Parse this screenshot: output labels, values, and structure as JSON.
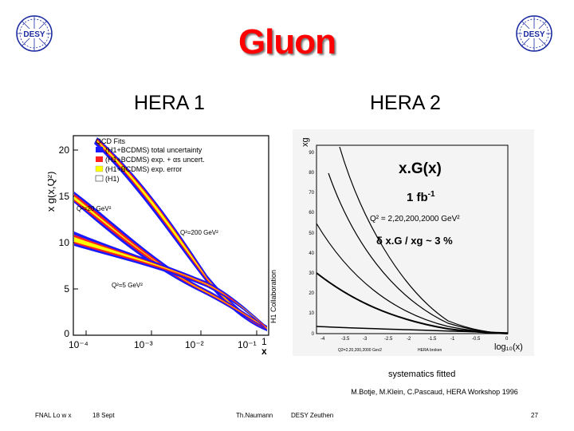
{
  "title": "Gluon",
  "logo_text": "DESY",
  "hera1_label": "HERA 1",
  "hera2_label": "HERA 2",
  "left_plot": {
    "y_axis_label": "x g(x,Q²)",
    "x_axis_label": "x",
    "y_ticks": [
      "20",
      "15",
      "10",
      "5",
      "0"
    ],
    "x_ticks": [
      "10⁻⁴",
      "10⁻³",
      "10⁻²",
      "10⁻¹",
      "1"
    ],
    "legend_title": "QCD Fits",
    "legend": [
      {
        "label": "(H1+BCDMS) total uncertainty",
        "color": "#1a1aff"
      },
      {
        "label": "(H1+BCDMS) exp. + αs uncert.",
        "color": "#ff2020"
      },
      {
        "label": "(H1+BCDMS) exp. error",
        "color": "#ffff00"
      },
      {
        "label": "(H1)",
        "color": "#ffffff"
      }
    ],
    "curve_labels": [
      "Q²=20 GeV²",
      "Q²=200 GeV²",
      "Q²=5 GeV²"
    ],
    "collab_label": "H1 Collaboration"
  },
  "right_plot": {
    "y_axis_label": "xg",
    "y_ticks": [
      "90",
      "80",
      "70",
      "60",
      "50",
      "40",
      "30",
      "20",
      "10",
      "0"
    ],
    "x_ticks": [
      "-4",
      "-3.5",
      "-3",
      "-2.5",
      "-2",
      "-1.5",
      "-1",
      "-0.5",
      "0"
    ],
    "x_axis_label": "log₁₀(x)",
    "main_label": "x.G(x)",
    "lumi_label": "1 fb",
    "lumi_sup": "-1",
    "q2_label": "Q² = 2,20,200,2000 GeV²",
    "precision_label": "δ x.G / xg ~ 3 %",
    "small_q2": "Q2=2,20,200,2000 Gev2",
    "small_hera": "HERA broken"
  },
  "systematics": "systematics fitted",
  "credit": "M.Botje, M.Klein, C.Pascaud, HERA Workshop 1996",
  "footer": {
    "left": "FNAL Lo w x",
    "date": "18 Sept",
    "author": "Th.Naumann",
    "place": "DESY Zeuthen",
    "page": "27"
  }
}
